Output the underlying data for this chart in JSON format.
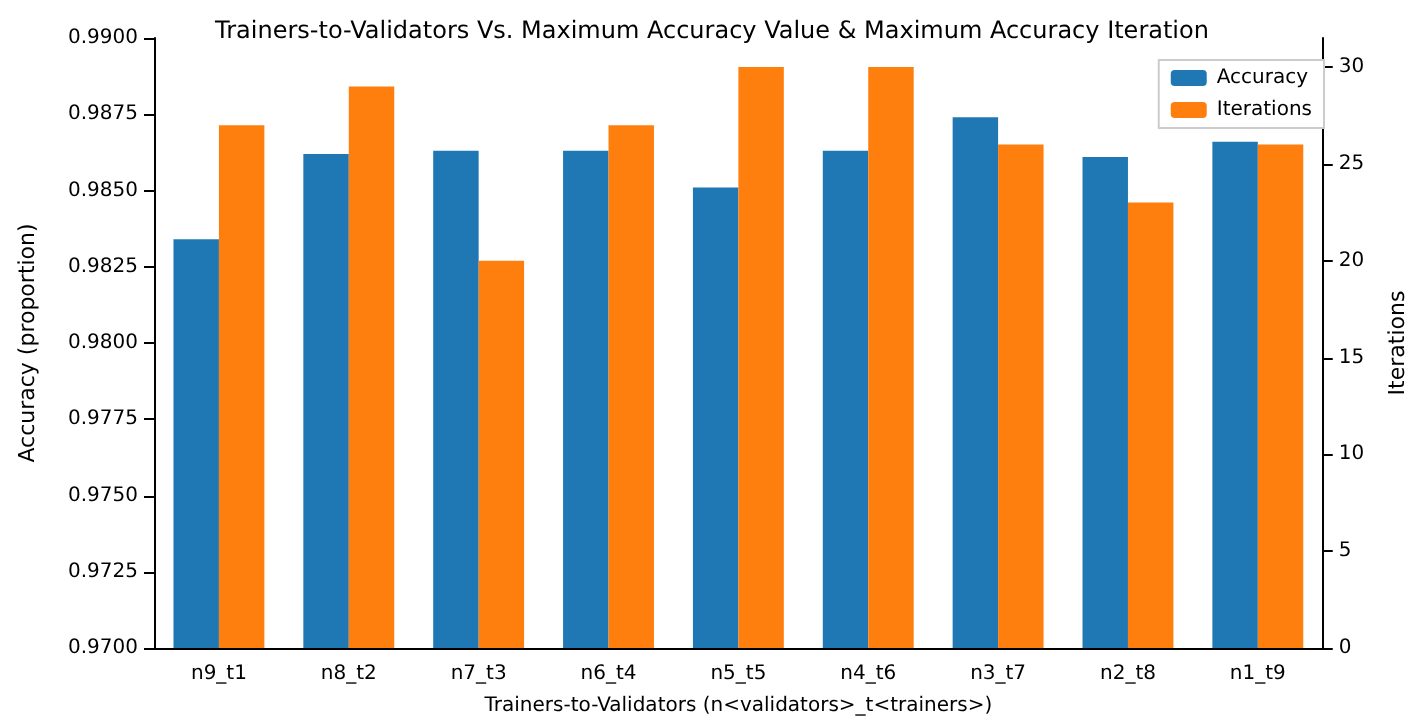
{
  "chart_data": {
    "type": "bar",
    "title": "Trainers-to-Validators Vs. Maximum Accuracy Value & Maximum Accuracy Iteration",
    "xlabel": "Trainers-to-Validators (n<validators>_t<trainers>)",
    "ylabel": "Accuracy (proportion)",
    "y2label": "Iterations",
    "categories": [
      "n9_t1",
      "n8_t2",
      "n7_t3",
      "n6_t4",
      "n5_t5",
      "n4_t6",
      "n3_t7",
      "n2_t8",
      "n1_t9"
    ],
    "series": [
      {
        "name": "Accuracy",
        "color": "#1f77b4",
        "values": [
          0.9834,
          0.9862,
          0.9863,
          0.9863,
          0.9851,
          0.9863,
          0.9874,
          0.9861,
          0.9866
        ]
      },
      {
        "name": "Iterations",
        "color": "#ff7f0e",
        "axis": "y2",
        "values": [
          27,
          29,
          20,
          27,
          30,
          30,
          26,
          23,
          26
        ]
      }
    ],
    "ylim": [
      0.97,
      0.99
    ],
    "yticks": [
      {
        "value": 0.97,
        "label": "0.9700"
      },
      {
        "value": 0.9725,
        "label": "0.9725"
      },
      {
        "value": 0.975,
        "label": "0.9750"
      },
      {
        "value": 0.9775,
        "label": "0.9775"
      },
      {
        "value": 0.98,
        "label": "0.9800"
      },
      {
        "value": 0.9825,
        "label": "0.9825"
      },
      {
        "value": 0.985,
        "label": "0.9850"
      },
      {
        "value": 0.9875,
        "label": "0.9875"
      },
      {
        "value": 0.99,
        "label": "0.9900"
      }
    ],
    "y2lim": [
      0,
      31.5
    ],
    "y2ticks": [
      0,
      5,
      10,
      15,
      20,
      25,
      30
    ],
    "grid": false,
    "legend": "top right"
  }
}
